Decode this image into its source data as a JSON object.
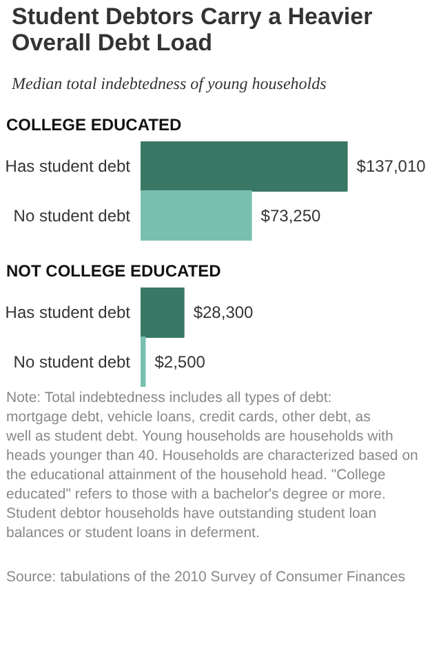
{
  "chart_data": [
    {
      "type": "other",
      "title": "Student Debtors Carry a Heavier Overall Debt Load",
      "subtitle": "Median total indebtedness of young households"
    },
    {
      "type": "bar",
      "orientation": "horizontal",
      "title": "COLLEGE EDUCATED",
      "categories": [
        "Has student debt",
        "No student debt"
      ],
      "values": [
        137010,
        73250
      ],
      "colors": [
        "#3a7866",
        "#79bfb0"
      ],
      "value_labels": [
        "$137,010",
        "$73,250"
      ]
    },
    {
      "type": "bar",
      "orientation": "horizontal",
      "title": "NOT COLLEGE EDUCATED",
      "categories": [
        "Has student debt",
        "No student debt"
      ],
      "values": [
        28300,
        2500
      ],
      "colors": [
        "#3a7866",
        "#79bfb0"
      ],
      "value_labels": [
        "$28,300",
        "$2,500"
      ],
      "annotations": [
        "Note: Total indebtedness includes all types of debt: mortgage debt, vehicle loans, credit cards, other debt, as well as student debt. Young households are households with heads younger than 40. Households are characterized based on the educational attainment of the household head. \"College educated\" refers to those with a bachelor's degree or more. Student debtor households have outstanding student loan balances or student loans in deferment.",
        "Source: tabulations of the 2010 Survey of Consumer Finances"
      ]
    }
  ]
}
